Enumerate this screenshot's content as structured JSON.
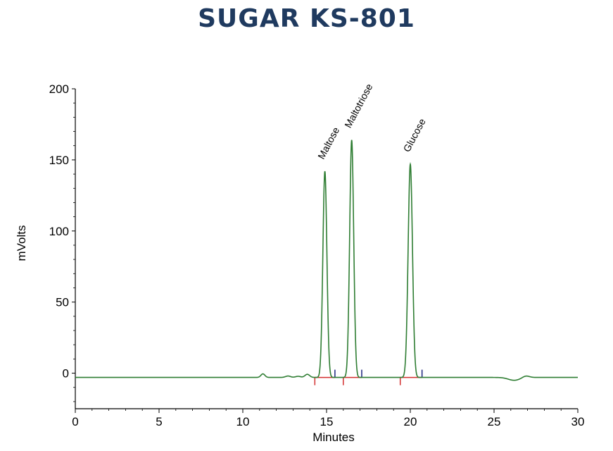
{
  "chart_data": {
    "type": "line",
    "title": "SUGAR KS-801",
    "xlabel": "Minutes",
    "ylabel": "mVolts",
    "xlim": [
      0,
      30
    ],
    "ylim": [
      -25,
      200
    ],
    "x_ticks": [
      0,
      5,
      10,
      15,
      20,
      25,
      30
    ],
    "y_ticks": [
      0,
      50,
      100,
      150,
      200
    ],
    "grid": false,
    "series": [
      {
        "color": "#2e7d32",
        "baseline": -3,
        "peaks": [
          {
            "label": "Maltose",
            "retention_time": 14.9,
            "height": 145,
            "width": 0.12
          },
          {
            "label": "Maltotriose",
            "retention_time": 16.5,
            "height": 167,
            "width": 0.12
          },
          {
            "label": "Glucose",
            "retention_time": 20.0,
            "height": 150,
            "width": 0.13
          }
        ],
        "minor_features": [
          {
            "x": 11.2,
            "height": 2.5,
            "width": 0.12
          },
          {
            "x": 12.7,
            "height": 1.0,
            "width": 0.15
          },
          {
            "x": 13.3,
            "height": 0.8,
            "width": 0.15
          },
          {
            "x": 13.85,
            "height": 2.2,
            "width": 0.14
          },
          {
            "x": 26.2,
            "height": -2.0,
            "width": 0.35
          },
          {
            "x": 26.9,
            "height": 1.2,
            "width": 0.2
          }
        ]
      }
    ],
    "integration_markers": [
      {
        "x": 14.3,
        "role": "start",
        "color": "#d32f2f"
      },
      {
        "x": 15.5,
        "role": "end",
        "color": "#1a237e"
      },
      {
        "x": 16.0,
        "role": "start",
        "color": "#d32f2f"
      },
      {
        "x": 17.1,
        "role": "end",
        "color": "#1a237e"
      },
      {
        "x": 19.4,
        "role": "start",
        "color": "#d32f2f"
      },
      {
        "x": 20.7,
        "role": "end",
        "color": "#1a237e"
      }
    ],
    "baseline_segments": [
      {
        "from": 14.3,
        "to": 15.5,
        "color": "#d32f2f"
      },
      {
        "from": 16.0,
        "to": 17.1,
        "color": "#d32f2f"
      },
      {
        "from": 19.4,
        "to": 20.7,
        "color": "#d32f2f"
      }
    ]
  }
}
